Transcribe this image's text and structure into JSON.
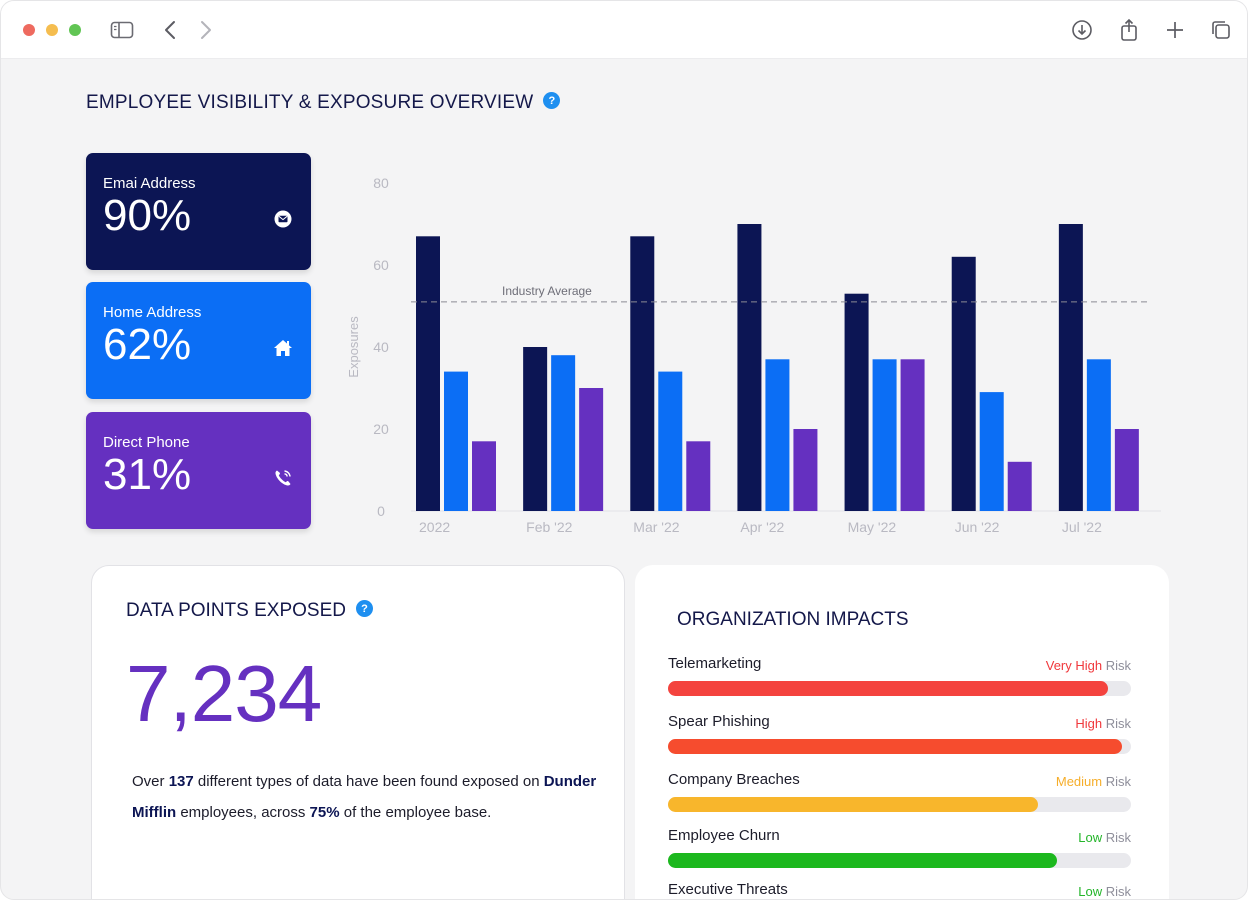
{
  "browser": {
    "icons": [
      "sidebar-icon",
      "back-icon",
      "forward-icon",
      "download-icon",
      "share-icon",
      "new-tab-icon",
      "tabs-overview-icon"
    ]
  },
  "page": {
    "title": "EMPLOYEE VISIBILITY & EXPOSURE OVERVIEW",
    "help": "?"
  },
  "stats": [
    {
      "label": "Emai Address",
      "value": "90%",
      "icon": "mail-icon",
      "color": "#0c1554"
    },
    {
      "label": "Home Address",
      "value": "62%",
      "icon": "home-icon",
      "color": "#0b6ef5"
    },
    {
      "label": "Direct Phone",
      "value": "31%",
      "icon": "phone-icon",
      "color": "#6530c0"
    }
  ],
  "chart_data": {
    "type": "bar",
    "categories": [
      "2022",
      "Feb '22",
      "Mar '22",
      "Apr '22",
      "May '22",
      "Jun '22",
      "Jul '22"
    ],
    "series": [
      {
        "color": "#0c1554",
        "values": [
          67,
          40,
          67,
          70,
          53,
          62,
          70
        ]
      },
      {
        "color": "#0b6ef5",
        "values": [
          34,
          38,
          34,
          37,
          37,
          29,
          37
        ]
      },
      {
        "color": "#6530c0",
        "values": [
          17,
          30,
          17,
          20,
          37,
          12,
          20
        ]
      }
    ],
    "ylabel": "Exposures",
    "ylim": [
      0,
      80
    ],
    "yticks": [
      0,
      20,
      40,
      60,
      80
    ],
    "reference_line": {
      "label": "Industry Average",
      "value": 51
    },
    "grid": false
  },
  "data_points": {
    "title": "DATA POINTS EXPOSED",
    "help": "?",
    "count": "7,234",
    "text_1": "Over ",
    "types_count": "137",
    "text_2": " different types of data have been found exposed on ",
    "company": "Dunder Mifflin",
    "text_3": " employees, across ",
    "coverage": "75%",
    "text_4": " of the employee base."
  },
  "impacts": {
    "title": "ORGANIZATION IMPACTS",
    "risk_suffix": "Risk",
    "items": [
      {
        "name": "Telemarketing",
        "level": "Very High",
        "level_color": "#f0383c",
        "fill": 0.95,
        "fill_color": "#f4433e"
      },
      {
        "name": "Spear Phishing",
        "level": "High",
        "level_color": "#f0383c",
        "fill": 0.98,
        "fill_color": "#f64c2e"
      },
      {
        "name": "Company Breaches",
        "level": "Medium",
        "level_color": "#f6ae2b",
        "fill": 0.8,
        "fill_color": "#f8b62c"
      },
      {
        "name": "Employee Churn",
        "level": "Low",
        "level_color": "#24b52a",
        "fill": 0.84,
        "fill_color": "#1cb81e"
      },
      {
        "name": "Executive Threats",
        "level": "Low",
        "level_color": "#24b52a",
        "fill": 0.0,
        "fill_color": "#1cb81e"
      }
    ]
  }
}
